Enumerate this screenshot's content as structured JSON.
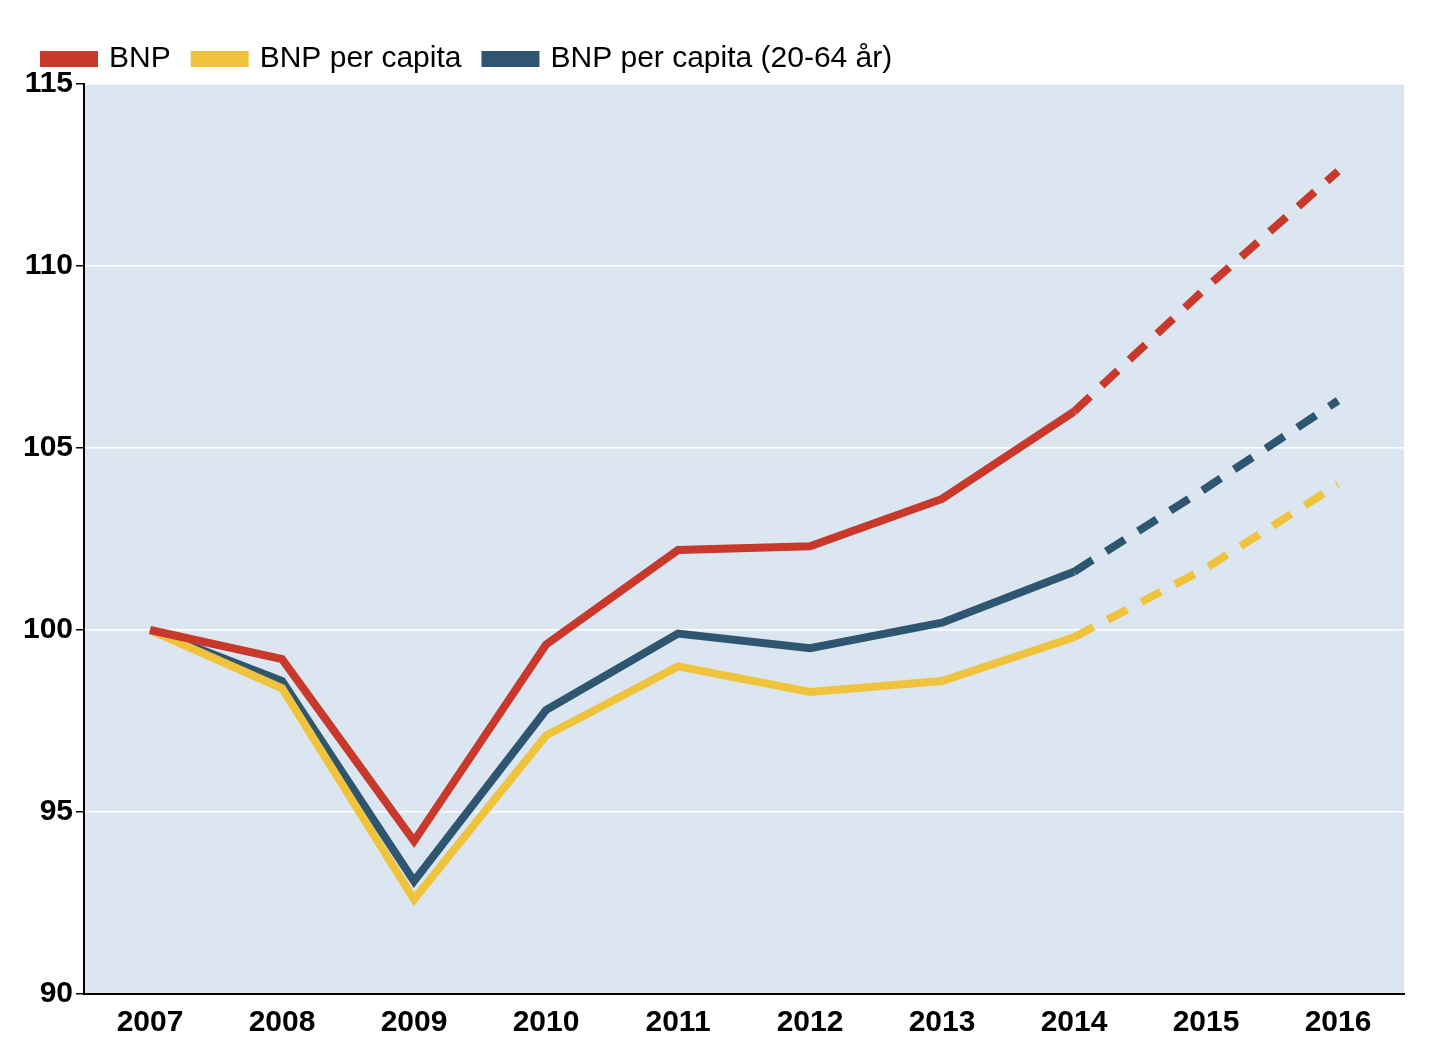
{
  "chart_data": {
    "type": "line",
    "categories": [
      "2007",
      "2008",
      "2009",
      "2010",
      "2011",
      "2012",
      "2013",
      "2014",
      "2015",
      "2016"
    ],
    "series": [
      {
        "name": "BNP",
        "color": "#c8382b",
        "line_style": "solid",
        "values": [
          100,
          99.2,
          94.2,
          99.6,
          102.2,
          102.3,
          103.6,
          106.0,
          null,
          null
        ]
      },
      {
        "name": "BNP per capita",
        "color": "#f0c33c",
        "line_style": "solid",
        "values": [
          100,
          98.4,
          92.6,
          97.1,
          99.0,
          98.3,
          98.6,
          99.8,
          null,
          null
        ]
      },
      {
        "name": "BNP per capita (20-64 år)",
        "color": "#2e5670",
        "line_style": "solid",
        "values": [
          100,
          98.6,
          93.1,
          97.8,
          99.9,
          99.5,
          100.2,
          101.6,
          null,
          null
        ]
      },
      {
        "name": "BNP",
        "color": "#c8382b",
        "line_style": "dashed",
        "values": [
          null,
          null,
          null,
          null,
          null,
          null,
          null,
          106.0,
          109.4,
          112.6
        ]
      },
      {
        "name": "BNP per capita",
        "color": "#f0c33c",
        "line_style": "dashed",
        "values": [
          null,
          null,
          null,
          null,
          null,
          null,
          null,
          99.8,
          101.7,
          104.0
        ]
      },
      {
        "name": "BNP per capita (20-64 år)",
        "color": "#2e5670",
        "line_style": "dashed",
        "values": [
          null,
          null,
          null,
          null,
          null,
          null,
          null,
          101.6,
          103.9,
          106.3
        ]
      }
    ],
    "ylim": [
      90,
      115
    ],
    "yticks": [
      90,
      95,
      100,
      105,
      110,
      115
    ],
    "grid": true,
    "legend": "upper left"
  }
}
